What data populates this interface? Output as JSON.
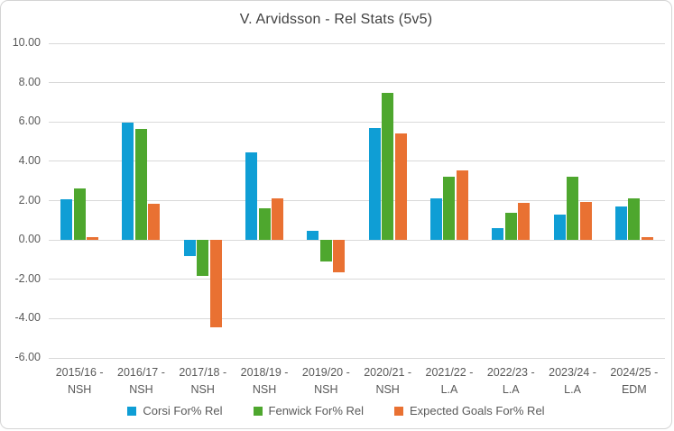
{
  "chart_data": {
    "type": "bar",
    "title": "V. Arvidsson - Rel Stats (5v5)",
    "categories": [
      {
        "line1": "2015/16 -",
        "line2": "NSH"
      },
      {
        "line1": "2016/17 -",
        "line2": "NSH"
      },
      {
        "line1": "2017/18 -",
        "line2": "NSH"
      },
      {
        "line1": "2018/19 -",
        "line2": "NSH"
      },
      {
        "line1": "2019/20 -",
        "line2": "NSH"
      },
      {
        "line1": "2020/21 -",
        "line2": "NSH"
      },
      {
        "line1": "2021/22 -",
        "line2": "L.A"
      },
      {
        "line1": "2022/23 -",
        "line2": "L.A"
      },
      {
        "line1": "2023/24 -",
        "line2": "L.A"
      },
      {
        "line1": "2024/25 -",
        "line2": "EDM"
      }
    ],
    "series": [
      {
        "name": "Corsi For% Rel",
        "color": "#0F9ED5",
        "values": [
          2.05,
          5.95,
          -0.8,
          4.45,
          0.45,
          5.7,
          2.1,
          0.6,
          1.3,
          1.7
        ]
      },
      {
        "name": "Fenwick For% Rel",
        "color": "#4EA72E",
        "values": [
          2.6,
          5.65,
          -1.85,
          1.6,
          -1.1,
          7.5,
          3.2,
          1.4,
          3.2,
          2.1
        ]
      },
      {
        "name": "Expected Goals For% Rel",
        "color": "#E97132",
        "values": [
          0.15,
          1.85,
          -4.45,
          2.1,
          -1.65,
          5.4,
          3.55,
          1.9,
          1.95,
          0.15
        ]
      }
    ],
    "ylim": [
      -6,
      10
    ],
    "yticks": [
      10,
      8,
      6,
      4,
      2,
      0,
      -2,
      -4,
      -6
    ],
    "ytick_labels": [
      "10.00",
      "8.00",
      "6.00",
      "4.00",
      "2.00",
      "0.00",
      "-2.00",
      "-4.00",
      "-6.00"
    ],
    "grid": true,
    "legend_position": "bottom",
    "colors": {
      "gridline": "#D9D9D9",
      "axis_text": "#595959",
      "title_text": "#404040",
      "background": "#FFFFFF",
      "frame_border": "#D4D4D4"
    }
  }
}
